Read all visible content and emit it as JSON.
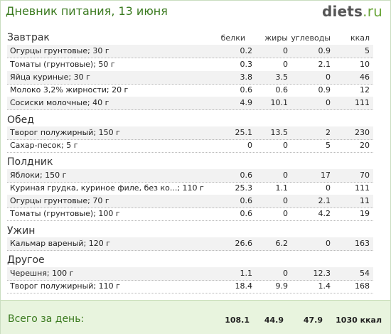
{
  "header": {
    "title": "Дневник питания, 13 июня",
    "logo_main": "diets",
    "logo_suffix": ".ru"
  },
  "columns": {
    "protein": "белки",
    "fat": "жиры",
    "carbs": "углеводы",
    "kcal": "ккал"
  },
  "meals": [
    {
      "name": "Завтрак",
      "items": [
        {
          "label": "Огурцы грунтовые; 30 г",
          "protein": "0.2",
          "fat": "0",
          "carbs": "0.9",
          "kcal": "5"
        },
        {
          "label": "Томаты (грунтовые); 50 г",
          "protein": "0.3",
          "fat": "0",
          "carbs": "2.1",
          "kcal": "10"
        },
        {
          "label": "Яйца куриные; 30 г",
          "protein": "3.8",
          "fat": "3.5",
          "carbs": "0",
          "kcal": "46"
        },
        {
          "label": "Молоко 3,2% жирности; 20 г",
          "protein": "0.6",
          "fat": "0.6",
          "carbs": "0.9",
          "kcal": "12"
        },
        {
          "label": "Сосиски молочные; 40 г",
          "protein": "4.9",
          "fat": "10.1",
          "carbs": "0",
          "kcal": "111"
        }
      ]
    },
    {
      "name": "Обед",
      "items": [
        {
          "label": "Творог полужирный; 150 г",
          "protein": "25.1",
          "fat": "13.5",
          "carbs": "2",
          "kcal": "230"
        },
        {
          "label": "Сахар-песок; 5 г",
          "protein": "0",
          "fat": "0",
          "carbs": "5",
          "kcal": "20"
        }
      ]
    },
    {
      "name": "Полдник",
      "items": [
        {
          "label": "Яблоки; 150 г",
          "protein": "0.6",
          "fat": "0",
          "carbs": "17",
          "kcal": "70"
        },
        {
          "label": "Куриная грудка, куриное филе, без ко...; 110 г",
          "protein": "25.3",
          "fat": "1.1",
          "carbs": "0",
          "kcal": "111"
        },
        {
          "label": "Огурцы грунтовые; 70 г",
          "protein": "0.6",
          "fat": "0",
          "carbs": "2.1",
          "kcal": "11"
        },
        {
          "label": "Томаты (грунтовые); 100 г",
          "protein": "0.6",
          "fat": "0",
          "carbs": "4.2",
          "kcal": "19"
        }
      ]
    },
    {
      "name": "Ужин",
      "items": [
        {
          "label": "Кальмар вареный; 120 г",
          "protein": "26.6",
          "fat": "6.2",
          "carbs": "0",
          "kcal": "163"
        }
      ]
    },
    {
      "name": "Другое",
      "items": [
        {
          "label": "Черешня; 100 г",
          "protein": "1.1",
          "fat": "0",
          "carbs": "12.3",
          "kcal": "54"
        },
        {
          "label": "Творог полужирный; 110 г",
          "protein": "18.4",
          "fat": "9.9",
          "carbs": "1.4",
          "kcal": "168"
        }
      ]
    }
  ],
  "totals": {
    "label": "Всего за день:",
    "protein": "108.1",
    "fat": "44.9",
    "carbs": "47.9",
    "kcal": "1030 ккал"
  },
  "colors": {
    "accent_green": "#3a7a1f",
    "footer_bg": "#e8f4de"
  }
}
